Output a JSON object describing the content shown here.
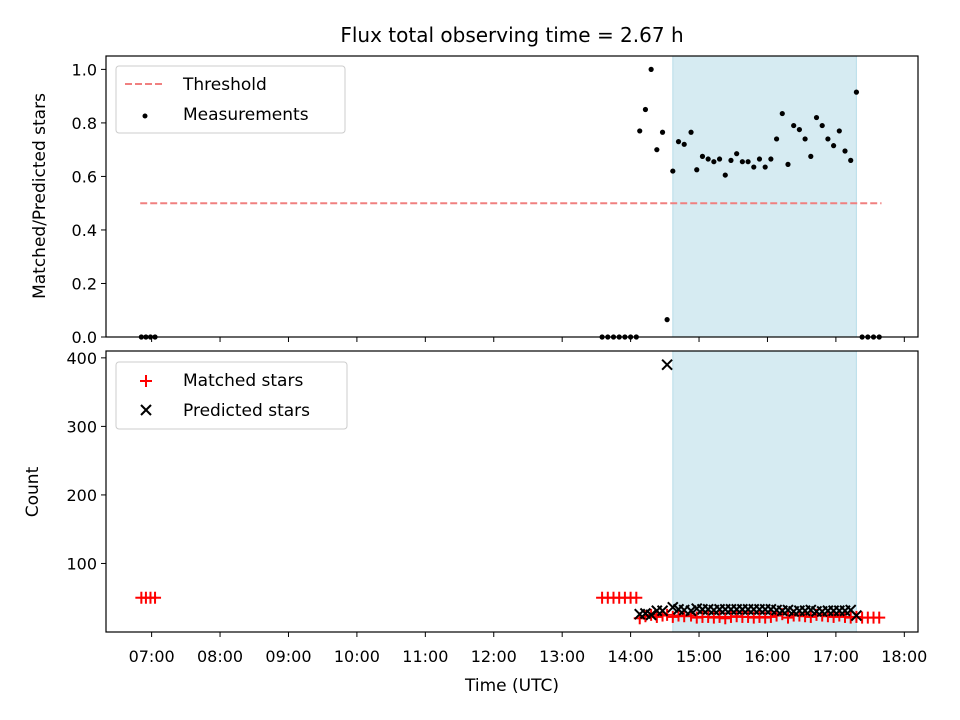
{
  "chart_data": [
    {
      "type": "scatter",
      "title": "Flux total observing time = 2.67 h",
      "xlabel": "",
      "ylabel": "Matched/Predicted stars",
      "xlim": [
        "06:20",
        "18:12"
      ],
      "ylim": [
        0,
        1.05
      ],
      "yticks": [
        0.0,
        0.2,
        0.4,
        0.6,
        0.8,
        1.0
      ],
      "ytick_labels": [
        "0.0",
        "0.2",
        "0.4",
        "0.6",
        "0.8",
        "1.0"
      ],
      "shaded_span": [
        "14:37",
        "17:18"
      ],
      "shade_color": "#add8e6",
      "legend_position": "upper left",
      "legend": [
        "Threshold",
        "Measurements"
      ],
      "threshold": {
        "name": "Threshold",
        "value": 0.5,
        "x": [
          "06:50",
          "17:40"
        ],
        "color": "#f08080",
        "style": "dashed"
      },
      "series": [
        {
          "name": "Measurements",
          "color": "#000000",
          "points": [
            [
              "06:51",
              0.0
            ],
            [
              "06:55",
              0.0
            ],
            [
              "06:59",
              0.0
            ],
            [
              "07:03",
              0.0
            ],
            [
              "13:35",
              0.0
            ],
            [
              "13:40",
              0.0
            ],
            [
              "13:45",
              0.0
            ],
            [
              "13:50",
              0.0
            ],
            [
              "13:55",
              0.0
            ],
            [
              "14:00",
              0.0
            ],
            [
              "14:05",
              0.0
            ],
            [
              "14:08",
              0.77
            ],
            [
              "14:13",
              0.85
            ],
            [
              "14:18",
              1.0
            ],
            [
              "14:23",
              0.7
            ],
            [
              "14:28",
              0.765
            ],
            [
              "14:32",
              0.065
            ],
            [
              "14:37",
              0.62
            ],
            [
              "14:42",
              0.73
            ],
            [
              "14:47",
              0.72
            ],
            [
              "14:53",
              0.765
            ],
            [
              "14:58",
              0.625
            ],
            [
              "15:03",
              0.675
            ],
            [
              "15:08",
              0.665
            ],
            [
              "15:13",
              0.655
            ],
            [
              "15:18",
              0.665
            ],
            [
              "15:23",
              0.605
            ],
            [
              "15:28",
              0.66
            ],
            [
              "15:33",
              0.685
            ],
            [
              "15:38",
              0.655
            ],
            [
              "15:43",
              0.655
            ],
            [
              "15:48",
              0.635
            ],
            [
              "15:53",
              0.665
            ],
            [
              "15:58",
              0.635
            ],
            [
              "16:03",
              0.665
            ],
            [
              "16:08",
              0.74
            ],
            [
              "16:13",
              0.835
            ],
            [
              "16:18",
              0.645
            ],
            [
              "16:23",
              0.79
            ],
            [
              "16:28",
              0.775
            ],
            [
              "16:33",
              0.74
            ],
            [
              "16:38",
              0.675
            ],
            [
              "16:43",
              0.82
            ],
            [
              "16:48",
              0.79
            ],
            [
              "16:53",
              0.74
            ],
            [
              "16:58",
              0.715
            ],
            [
              "17:03",
              0.77
            ],
            [
              "17:08",
              0.695
            ],
            [
              "17:13",
              0.66
            ],
            [
              "17:18",
              0.915
            ],
            [
              "17:23",
              0.0
            ],
            [
              "17:28",
              0.0
            ],
            [
              "17:33",
              0.0
            ],
            [
              "17:38",
              0.0
            ]
          ]
        }
      ]
    },
    {
      "type": "scatter",
      "title": "",
      "xlabel": "Time (UTC)",
      "ylabel": "Count",
      "xlim": [
        "06:20",
        "18:12"
      ],
      "ylim": [
        0,
        410
      ],
      "yticks": [
        100,
        200,
        300,
        400
      ],
      "ytick_labels": [
        "100",
        "200",
        "300",
        "400"
      ],
      "xticks": [
        "07:00",
        "08:00",
        "09:00",
        "10:00",
        "11:00",
        "12:00",
        "13:00",
        "14:00",
        "15:00",
        "16:00",
        "17:00",
        "18:00"
      ],
      "xtick_labels": [
        "07:00",
        "08:00",
        "09:00",
        "10:00",
        "11:00",
        "12:00",
        "13:00",
        "14:00",
        "15:00",
        "16:00",
        "17:00",
        "18:00"
      ],
      "shaded_span": [
        "14:37",
        "17:18"
      ],
      "shade_color": "#add8e6",
      "legend_position": "upper left",
      "legend": [
        "Matched stars",
        "Predicted stars"
      ],
      "series": [
        {
          "name": "Matched stars",
          "marker": "plus",
          "color": "#ff0000",
          "points": [
            [
              "06:51",
              50
            ],
            [
              "06:55",
              50
            ],
            [
              "06:59",
              50
            ],
            [
              "07:03",
              50
            ],
            [
              "13:35",
              50
            ],
            [
              "13:40",
              50
            ],
            [
              "13:45",
              50
            ],
            [
              "13:50",
              50
            ],
            [
              "13:55",
              50
            ],
            [
              "14:00",
              50
            ],
            [
              "14:05",
              50
            ],
            [
              "14:08",
              20
            ],
            [
              "14:13",
              23
            ],
            [
              "14:18",
              25
            ],
            [
              "14:23",
              22
            ],
            [
              "14:28",
              24
            ],
            [
              "14:32",
              25
            ],
            [
              "14:37",
              22
            ],
            [
              "14:42",
              24
            ],
            [
              "14:47",
              23
            ],
            [
              "14:53",
              24
            ],
            [
              "14:58",
              21
            ],
            [
              "15:03",
              22
            ],
            [
              "15:08",
              22
            ],
            [
              "15:13",
              21
            ],
            [
              "15:18",
              22
            ],
            [
              "15:23",
              20
            ],
            [
              "15:28",
              22
            ],
            [
              "15:33",
              23
            ],
            [
              "15:38",
              22
            ],
            [
              "15:43",
              22
            ],
            [
              "15:48",
              21
            ],
            [
              "15:53",
              22
            ],
            [
              "15:58",
              21
            ],
            [
              "16:03",
              22
            ],
            [
              "16:08",
              24
            ],
            [
              "16:13",
              26
            ],
            [
              "16:18",
              21
            ],
            [
              "16:23",
              24
            ],
            [
              "16:28",
              24
            ],
            [
              "16:33",
              23
            ],
            [
              "16:38",
              22
            ],
            [
              "16:43",
              25
            ],
            [
              "16:48",
              24
            ],
            [
              "16:53",
              23
            ],
            [
              "16:58",
              22
            ],
            [
              "17:03",
              24
            ],
            [
              "17:08",
              22
            ],
            [
              "17:13",
              21
            ],
            [
              "17:18",
              22
            ],
            [
              "17:23",
              21
            ],
            [
              "17:28",
              21
            ],
            [
              "17:33",
              21
            ],
            [
              "17:38",
              21
            ]
          ]
        },
        {
          "name": "Predicted stars",
          "marker": "x",
          "color": "#000000",
          "points": [
            [
              "14:08",
              26
            ],
            [
              "14:13",
              27
            ],
            [
              "14:18",
              25
            ],
            [
              "14:23",
              31
            ],
            [
              "14:28",
              31
            ],
            [
              "14:32",
              390
            ],
            [
              "14:37",
              36
            ],
            [
              "14:42",
              33
            ],
            [
              "14:47",
              32
            ],
            [
              "14:53",
              31
            ],
            [
              "14:58",
              34
            ],
            [
              "15:03",
              33
            ],
            [
              "15:08",
              33
            ],
            [
              "15:13",
              32
            ],
            [
              "15:18",
              33
            ],
            [
              "15:23",
              33
            ],
            [
              "15:28",
              33
            ],
            [
              "15:33",
              33
            ],
            [
              "15:38",
              33
            ],
            [
              "15:43",
              33
            ],
            [
              "15:48",
              33
            ],
            [
              "15:53",
              33
            ],
            [
              "15:58",
              33
            ],
            [
              "16:03",
              33
            ],
            [
              "16:08",
              32
            ],
            [
              "16:13",
              31
            ],
            [
              "16:18",
              32
            ],
            [
              "16:23",
              30
            ],
            [
              "16:28",
              31
            ],
            [
              "16:33",
              31
            ],
            [
              "16:38",
              32
            ],
            [
              "16:43",
              30
            ],
            [
              "16:48",
              30
            ],
            [
              "16:53",
              31
            ],
            [
              "16:58",
              31
            ],
            [
              "17:03",
              31
            ],
            [
              "17:08",
              31
            ],
            [
              "17:13",
              32
            ],
            [
              "17:18",
              24
            ]
          ]
        }
      ]
    }
  ]
}
